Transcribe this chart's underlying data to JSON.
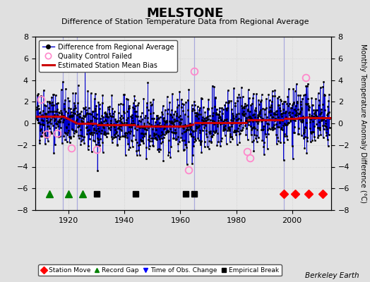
{
  "title": "MELSTONE",
  "subtitle": "Difference of Station Temperature Data from Regional Average",
  "ylabel": "Monthly Temperature Anomaly Difference (°C)",
  "xlim": [
    1908,
    2014
  ],
  "ylim": [
    -8,
    8
  ],
  "yticks": [
    -8,
    -6,
    -4,
    -2,
    0,
    2,
    4,
    6,
    8
  ],
  "xticks": [
    1920,
    1940,
    1960,
    1980,
    2000
  ],
  "background_color": "#e0e0e0",
  "plot_bg_color": "#e8e8e8",
  "line_color": "#0000cc",
  "bias_color": "#cc0000",
  "marker_color": "#000000",
  "qc_color": "#ff88cc",
  "seed": 42,
  "n_points": 1260,
  "start_year": 1908.5,
  "end_year": 2013.5,
  "bias_segments": [
    {
      "x": [
        1908,
        1918
      ],
      "y": [
        0.65,
        0.65
      ]
    },
    {
      "x": [
        1918,
        1923
      ],
      "y": [
        0.65,
        0.0
      ]
    },
    {
      "x": [
        1923,
        1930
      ],
      "y": [
        0.0,
        0.0
      ]
    },
    {
      "x": [
        1930,
        1944
      ],
      "y": [
        -0.15,
        -0.15
      ]
    },
    {
      "x": [
        1944,
        1962
      ],
      "y": [
        -0.25,
        -0.25
      ]
    },
    {
      "x": [
        1962,
        1965
      ],
      "y": [
        -0.25,
        -0.1
      ]
    },
    {
      "x": [
        1965,
        1984
      ],
      "y": [
        0.05,
        0.05
      ]
    },
    {
      "x": [
        1984,
        1997
      ],
      "y": [
        0.3,
        0.3
      ]
    },
    {
      "x": [
        1997,
        2002
      ],
      "y": [
        0.45,
        0.45
      ]
    },
    {
      "x": [
        2002,
        2006
      ],
      "y": [
        0.45,
        0.55
      ]
    },
    {
      "x": [
        2006,
        2014
      ],
      "y": [
        0.55,
        0.55
      ]
    }
  ],
  "station_moves": [
    1997,
    2001,
    2006,
    2011
  ],
  "record_gaps": [
    1913,
    1920,
    1925
  ],
  "obs_changes": [],
  "empirical_breaks": [
    1930,
    1944,
    1962,
    1965
  ],
  "qc_failed_approx": [
    [
      1910,
      2.2
    ],
    [
      1912,
      -1.0
    ],
    [
      1916,
      -0.9
    ],
    [
      1921,
      -2.3
    ],
    [
      1930,
      -2.4
    ],
    [
      1963,
      -4.3
    ],
    [
      1965,
      4.8
    ],
    [
      1984,
      -2.6
    ],
    [
      1985,
      -3.2
    ],
    [
      2005,
      4.2
    ]
  ],
  "vertical_lines": [
    1918,
    1923,
    1965,
    1997
  ],
  "watermark": "Berkeley Earth",
  "title_fontsize": 13,
  "subtitle_fontsize": 8,
  "tick_fontsize": 8,
  "ylabel_fontsize": 7
}
